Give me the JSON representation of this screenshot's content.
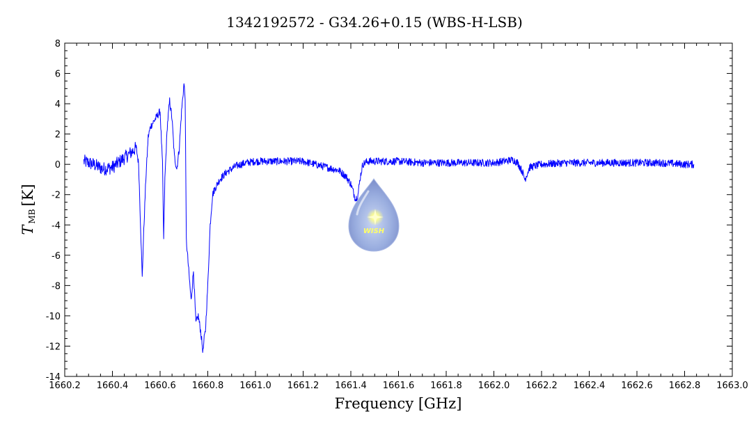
{
  "chart_data": {
    "type": "line",
    "title": "1342192572 - G34.26+0.15 (WBS-H-LSB)",
    "xlabel": "Frequency [GHz]",
    "ylabel_main": "T",
    "ylabel_sub": "MB",
    "ylabel_unit": "[K]",
    "xlim": [
      1660.2,
      1663.0
    ],
    "ylim": [
      -14,
      8
    ],
    "x_ticks": [
      1660.2,
      1660.4,
      1660.6,
      1660.8,
      1661.0,
      1661.2,
      1661.4,
      1661.6,
      1661.8,
      1662.0,
      1662.2,
      1662.4,
      1662.6,
      1662.8,
      1663.0
    ],
    "x_tick_labels": [
      "1660.2",
      "1660.4",
      "1660.6",
      "1660.8",
      "1661.0",
      "1661.2",
      "1661.4",
      "1661.6",
      "1661.8",
      "1662.0",
      "1662.2",
      "1662.4",
      "1662.6",
      "1662.8",
      "1663.0"
    ],
    "y_ticks": [
      -14,
      -12,
      -10,
      -8,
      -6,
      -4,
      -2,
      0,
      2,
      4,
      6,
      8
    ],
    "y_tick_labels": [
      "-14",
      "-12",
      "-10",
      "-8",
      "-6",
      "-4",
      "-2",
      "0",
      "2",
      "4",
      "6",
      "8"
    ],
    "grid": false,
    "series": [
      {
        "color": "#0000ff",
        "x": [
          1660.28,
          1660.32,
          1660.36,
          1660.4,
          1660.44,
          1660.48,
          1660.5,
          1660.51,
          1660.52,
          1660.525,
          1660.53,
          1660.54,
          1660.55,
          1660.56,
          1660.58,
          1660.6,
          1660.61,
          1660.615,
          1660.62,
          1660.63,
          1660.64,
          1660.65,
          1660.66,
          1660.67,
          1660.68,
          1660.69,
          1660.7,
          1660.705,
          1660.71,
          1660.72,
          1660.73,
          1660.74,
          1660.75,
          1660.76,
          1660.77,
          1660.78,
          1660.785,
          1660.79,
          1660.8,
          1660.81,
          1660.82,
          1660.83,
          1660.85,
          1660.88,
          1660.92,
          1660.96,
          1661.0,
          1661.1,
          1661.2,
          1661.25,
          1661.3,
          1661.35,
          1661.38,
          1661.4,
          1661.42,
          1661.43,
          1661.44,
          1661.45,
          1661.47,
          1661.5,
          1661.6,
          1661.7,
          1661.8,
          1661.9,
          1662.0,
          1662.08,
          1662.1,
          1662.12,
          1662.13,
          1662.15,
          1662.2,
          1662.3,
          1662.4,
          1662.5,
          1662.6,
          1662.7,
          1662.8,
          1662.84
        ],
        "y": [
          0.2,
          0.0,
          -0.3,
          -0.2,
          0.3,
          0.8,
          1.1,
          0.0,
          -5.0,
          -7.5,
          -5.0,
          -1.0,
          1.8,
          2.5,
          3.0,
          3.5,
          0.0,
          -5.0,
          -1.0,
          2.5,
          4.2,
          3.0,
          0.5,
          -0.3,
          1.0,
          3.5,
          5.3,
          4.5,
          -5.0,
          -7.0,
          -9.0,
          -7.0,
          -10.5,
          -10.0,
          -11.0,
          -12.4,
          -11.5,
          -11.0,
          -8.0,
          -4.0,
          -2.0,
          -1.6,
          -1.0,
          -0.5,
          -0.1,
          0.1,
          0.2,
          0.2,
          0.2,
          0.0,
          -0.2,
          -0.4,
          -0.8,
          -1.3,
          -2.3,
          -2.0,
          -0.8,
          0.0,
          0.2,
          0.2,
          0.2,
          0.1,
          0.1,
          0.1,
          0.1,
          0.3,
          0.1,
          -0.5,
          -1.0,
          -0.2,
          0.0,
          0.1,
          0.1,
          0.1,
          0.1,
          0.1,
          0.0,
          0.0
        ]
      }
    ]
  },
  "logo": {
    "text": "WISH"
  }
}
